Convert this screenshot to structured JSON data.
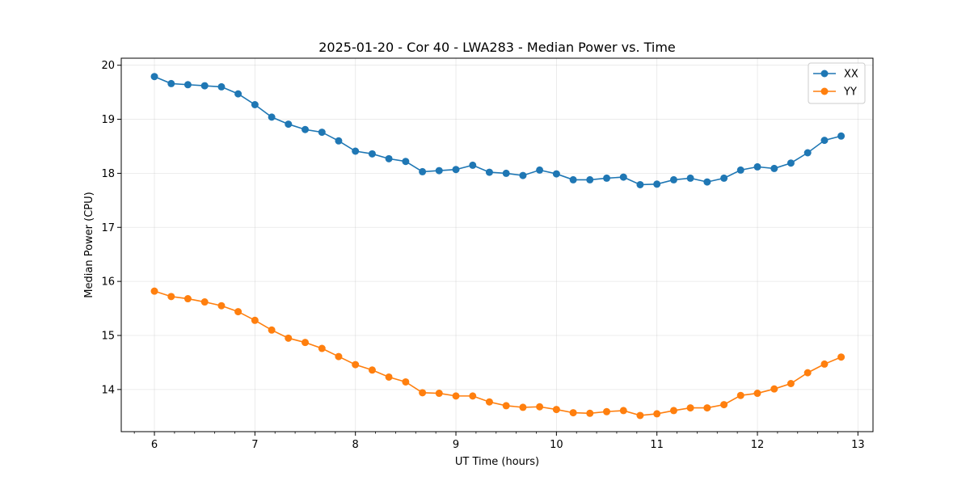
{
  "chart_data": {
    "type": "line",
    "title": "2025-01-20 - Cor 40 - LWA283 - Median Power vs. Time",
    "xlabel": "UT Time (hours)",
    "ylabel": "Median Power (CPU)",
    "xlim": [
      5.67,
      13.15
    ],
    "ylim": [
      13.22,
      20.13
    ],
    "xticks": [
      6,
      7,
      8,
      9,
      10,
      11,
      12,
      13
    ],
    "yticks": [
      14,
      15,
      16,
      17,
      18,
      19,
      20
    ],
    "grid": true,
    "legend_position": "top-right",
    "x": [
      6.0,
      6.167,
      6.333,
      6.5,
      6.667,
      6.833,
      7.0,
      7.167,
      7.333,
      7.5,
      7.667,
      7.833,
      8.0,
      8.167,
      8.333,
      8.5,
      8.667,
      8.833,
      9.0,
      9.167,
      9.333,
      9.5,
      9.667,
      9.833,
      10.0,
      10.167,
      10.333,
      10.5,
      10.667,
      10.833,
      11.0,
      11.167,
      11.333,
      11.5,
      11.667,
      11.833,
      12.0,
      12.167,
      12.333,
      12.5,
      12.667,
      12.833
    ],
    "series": [
      {
        "name": "XX",
        "color": "#1f77b4",
        "values": [
          19.79,
          19.66,
          19.64,
          19.62,
          19.6,
          19.47,
          19.27,
          19.04,
          18.91,
          18.81,
          18.76,
          18.6,
          18.41,
          18.36,
          18.27,
          18.22,
          18.03,
          18.05,
          18.07,
          18.15,
          18.02,
          18.0,
          17.96,
          18.06,
          17.99,
          17.88,
          17.88,
          17.91,
          17.93,
          17.79,
          17.8,
          17.88,
          17.91,
          17.84,
          17.91,
          18.06,
          18.12,
          18.09,
          18.19,
          18.38,
          18.61,
          18.69
        ]
      },
      {
        "name": "YY",
        "color": "#ff7f0e",
        "values": [
          15.82,
          15.72,
          15.68,
          15.62,
          15.55,
          15.44,
          15.28,
          15.1,
          14.95,
          14.87,
          14.76,
          14.61,
          14.46,
          14.36,
          14.23,
          14.14,
          13.94,
          13.93,
          13.88,
          13.88,
          13.77,
          13.7,
          13.67,
          13.68,
          13.63,
          13.57,
          13.56,
          13.59,
          13.61,
          13.52,
          13.55,
          13.61,
          13.66,
          13.66,
          13.72,
          13.89,
          13.93,
          14.01,
          14.11,
          14.31,
          14.47,
          14.6
        ]
      }
    ]
  }
}
